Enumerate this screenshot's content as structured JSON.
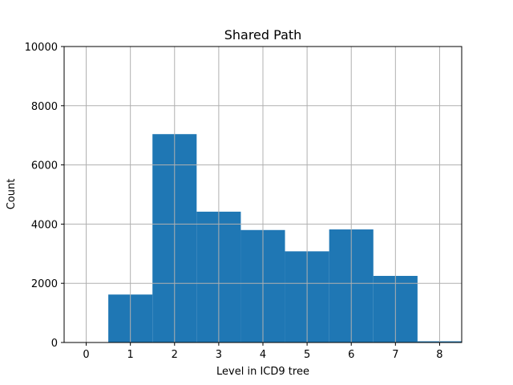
{
  "chart_data": {
    "type": "bar",
    "title": "Shared Path",
    "xlabel": "Level in ICD9 tree",
    "ylabel": "Count",
    "bins": [
      {
        "x0": 0.5,
        "x1": 1.5,
        "value": 1620
      },
      {
        "x0": 1.5,
        "x1": 2.5,
        "value": 7040
      },
      {
        "x0": 2.5,
        "x1": 3.5,
        "value": 4420
      },
      {
        "x0": 3.5,
        "x1": 4.5,
        "value": 3800
      },
      {
        "x0": 4.5,
        "x1": 5.5,
        "value": 3080
      },
      {
        "x0": 5.5,
        "x1": 6.5,
        "value": 3820
      },
      {
        "x0": 6.5,
        "x1": 7.5,
        "value": 2250
      },
      {
        "x0": 7.5,
        "x1": 8.5,
        "value": 40
      }
    ],
    "xlim": [
      -0.5,
      8.5
    ],
    "ylim": [
      0,
      10000
    ],
    "xticks": [
      0,
      1,
      2,
      3,
      4,
      5,
      6,
      7,
      8
    ],
    "yticks": [
      0,
      2000,
      4000,
      6000,
      8000,
      10000
    ],
    "grid": true,
    "bar_color": "#1f77b4"
  }
}
